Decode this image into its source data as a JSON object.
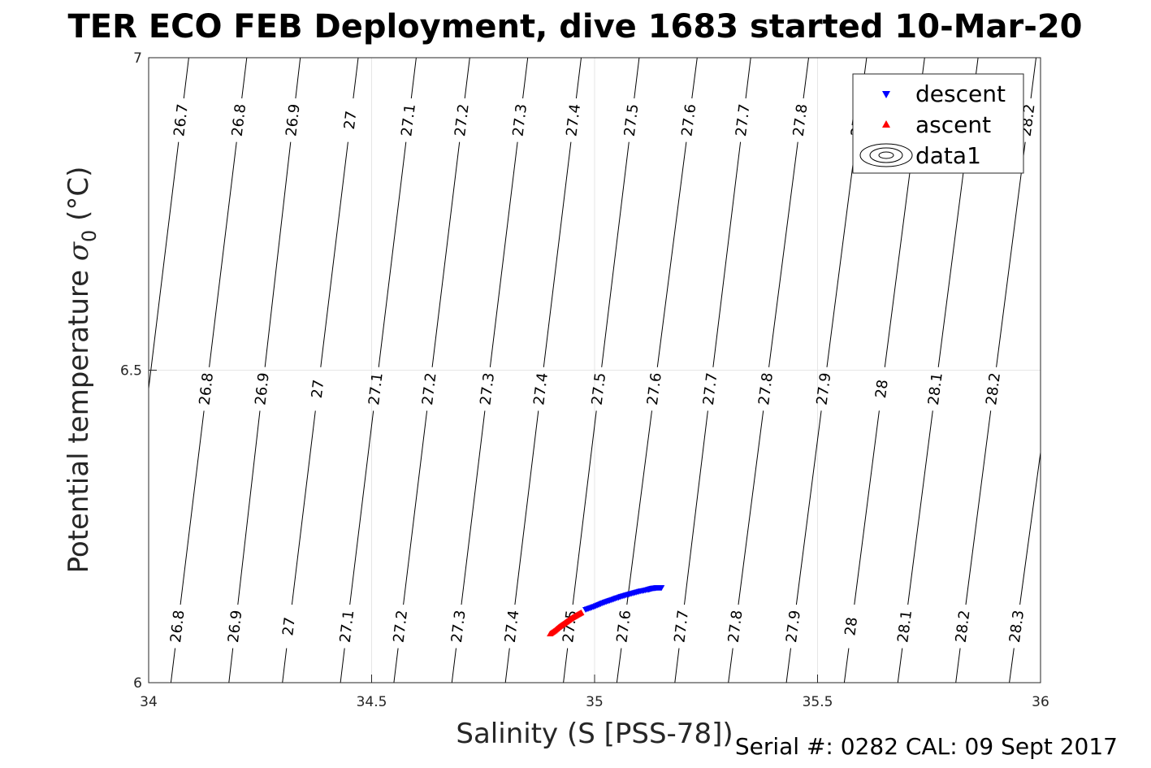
{
  "figure": {
    "title": "TER ECO FEB Deployment, dive 1683 started 10-Mar-20",
    "footer": "Serial #: 0282  CAL: 09 Sept 2017"
  },
  "chart_data": {
    "type": "scatter",
    "xlabel": "Salinity (S [PSS-78])",
    "ylabel_main": "Potential temperature ",
    "ylabel_sigma": "σ",
    "ylabel_sub": "0",
    "ylabel_unit": " (°C)",
    "xlim": [
      34,
      36
    ],
    "ylim": [
      6,
      7
    ],
    "xticks": [
      34,
      34.5,
      35,
      35.5,
      36
    ],
    "yticks": [
      6,
      6.5,
      7
    ],
    "xtick_labels": [
      "34",
      "34.5",
      "35",
      "35.5",
      "36"
    ],
    "ytick_labels": [
      "6",
      "6.5",
      "7"
    ],
    "grid": true,
    "legend": {
      "placement": "top-right",
      "entries": [
        "descent",
        "ascent",
        "data1"
      ]
    },
    "colors": {
      "descent": "#0000ff",
      "ascent": "#ff0000",
      "contour": "#000000"
    },
    "series": [
      {
        "name": "descent",
        "marker": "triangle-down",
        "x": [
          34.98,
          35.0,
          35.02,
          35.04,
          35.06,
          35.08,
          35.1,
          35.12,
          35.13,
          35.14,
          35.15
        ],
        "y": [
          6.117,
          6.122,
          6.128,
          6.133,
          6.138,
          6.142,
          6.146,
          6.149,
          6.151,
          6.152,
          6.152
        ]
      },
      {
        "name": "ascent",
        "marker": "triangle-up",
        "x": [
          34.9,
          34.91,
          34.92,
          34.93,
          34.94,
          34.95,
          34.96,
          34.97
        ],
        "y": [
          6.078,
          6.083,
          6.089,
          6.094,
          6.099,
          6.104,
          6.108,
          6.112
        ]
      }
    ],
    "contours": {
      "name": "data1",
      "levels": [
        26.7,
        26.8,
        26.9,
        27.0,
        27.1,
        27.2,
        27.3,
        27.4,
        27.5,
        27.6,
        27.7,
        27.8,
        27.9,
        28.0,
        28.1,
        28.2,
        28.3
      ],
      "level_labels": [
        "26.7",
        "26.8",
        "26.9",
        "27",
        "27.1",
        "27.2",
        "27.3",
        "27.4",
        "27.5",
        "27.6",
        "27.7",
        "27.8",
        "27.9",
        "28",
        "28.1",
        "28.2",
        "28.3"
      ],
      "s_at_t7": [
        34.09,
        34.22,
        34.34,
        34.47,
        34.6,
        34.72,
        34.85,
        34.97,
        35.1,
        35.23,
        35.35,
        35.48,
        35.61,
        35.74,
        35.86,
        35.99,
        36.12
      ],
      "s_at_t6": [
        33.92,
        34.05,
        34.18,
        34.3,
        34.43,
        34.55,
        34.68,
        34.8,
        34.93,
        35.05,
        35.18,
        35.3,
        35.43,
        35.56,
        35.68,
        35.81,
        35.93
      ],
      "label_bands_t": [
        6.9,
        6.47,
        6.09
      ]
    }
  }
}
